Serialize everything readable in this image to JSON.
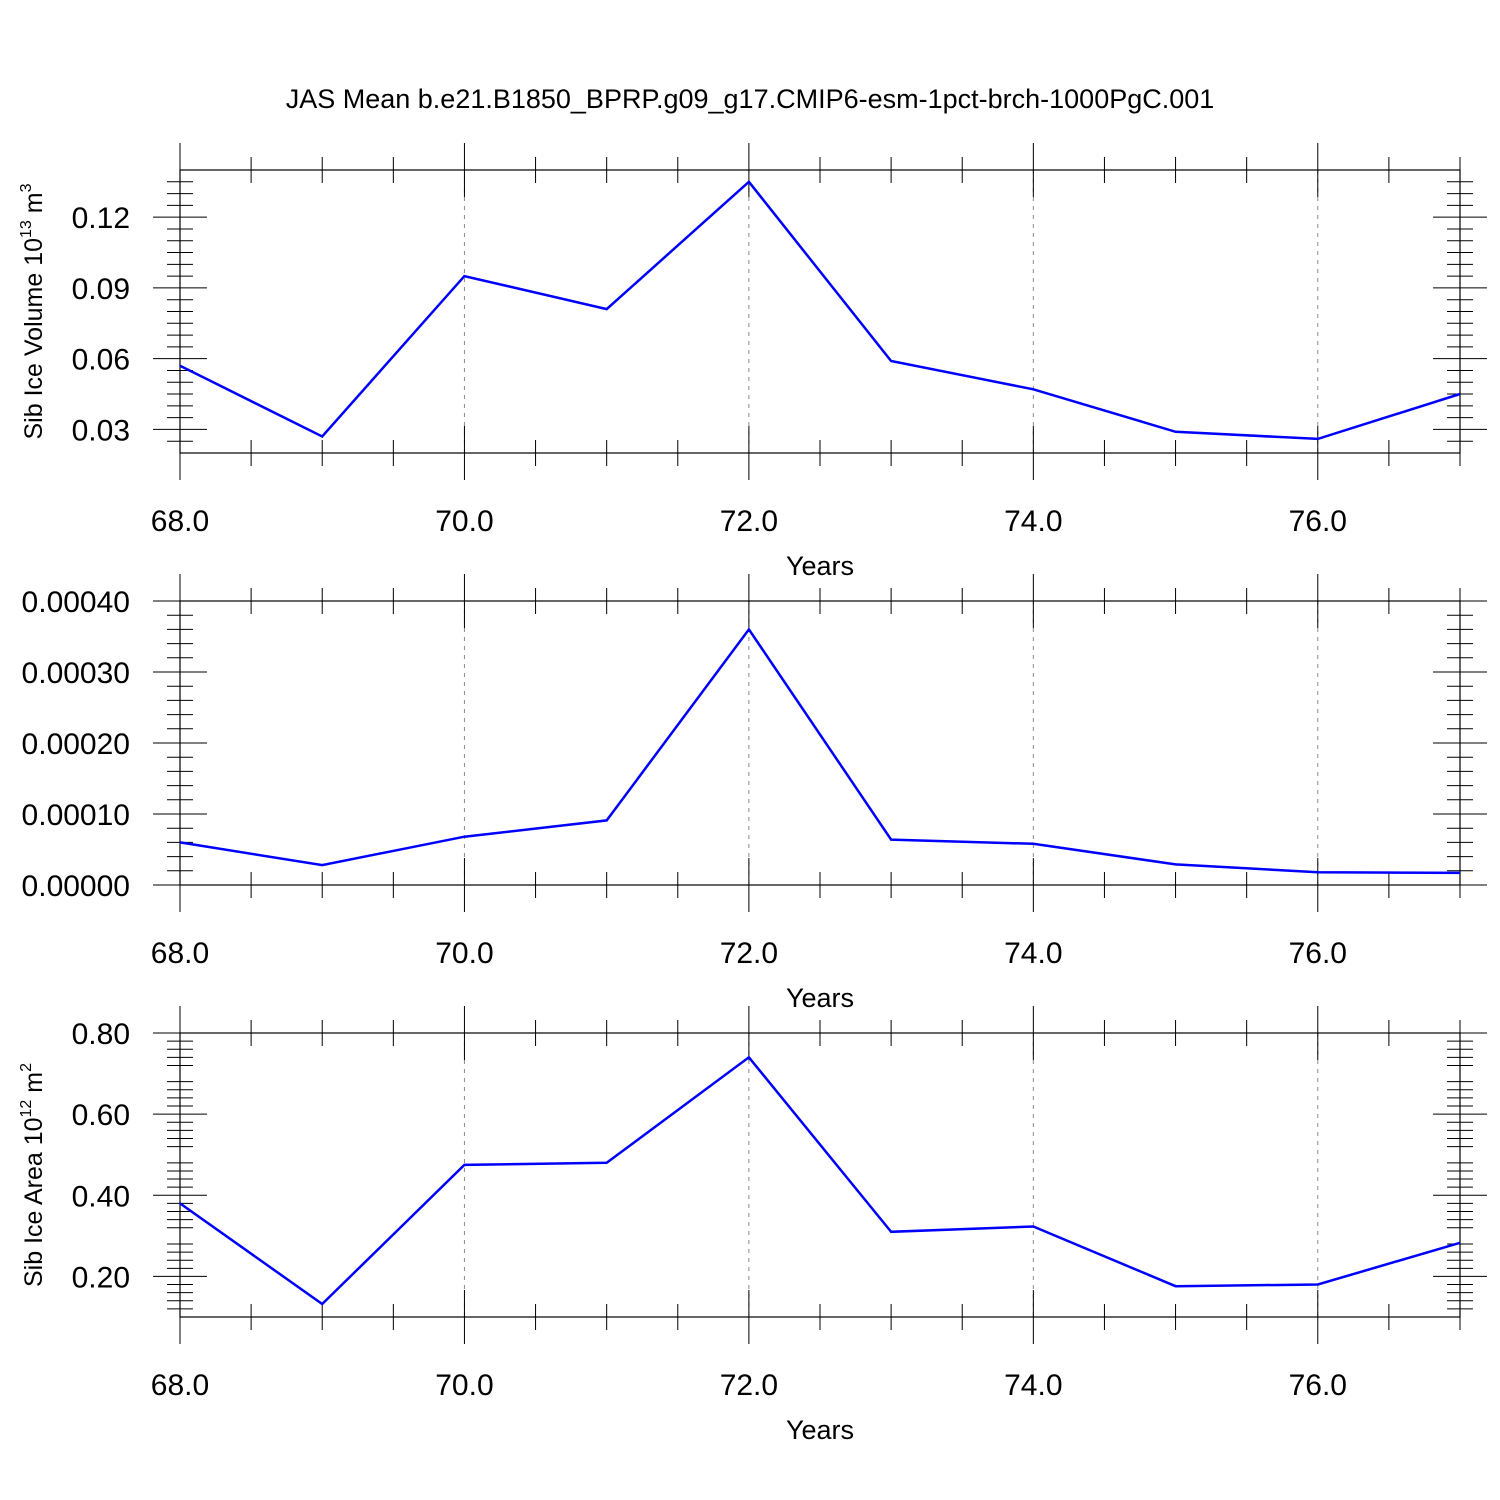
{
  "colors": {
    "line": "#0000ff",
    "axis": "#000000",
    "grid": "#8c8c8c",
    "background": "#ffffff"
  },
  "title": "JAS Mean b.e21.B1850_BPRP.g09_g17.CMIP6-esm-1pct-brch-1000PgC.001",
  "chart_data": [
    {
      "type": "line",
      "title": "",
      "xlabel": "Years",
      "ylabel": "Sib Ice Volume 10",
      "ylabel_sup1": "13",
      "ylabel_tail": " m",
      "ylabel_sup2": "3",
      "xlim": [
        68,
        77
      ],
      "ylim": [
        0.02,
        0.14
      ],
      "grid": "vertical dashed at major x ticks",
      "x": [
        68,
        69,
        70,
        71,
        72,
        73,
        74,
        75,
        76,
        77
      ],
      "x_ticks": [
        68,
        70,
        72,
        74,
        76
      ],
      "x_tick_labels": [
        "68.0",
        "70.0",
        "72.0",
        "74.0",
        "76.0"
      ],
      "y_ticks": [
        0.03,
        0.06,
        0.09,
        0.12
      ],
      "y_tick_labels": [
        "0.03",
        "0.06",
        "0.09",
        "0.12"
      ],
      "series": [
        {
          "values": [
            0.057,
            0.027,
            0.095,
            0.081,
            0.135,
            0.059,
            0.047,
            0.029,
            0.026,
            0.045
          ]
        }
      ]
    },
    {
      "type": "line",
      "title": "",
      "xlabel": "Years",
      "ylabel": "",
      "xlim": [
        68,
        77
      ],
      "ylim": [
        0,
        0.0004
      ],
      "grid": "vertical dashed at major x ticks",
      "x": [
        68,
        69,
        70,
        71,
        72,
        73,
        74,
        75,
        76,
        77
      ],
      "x_ticks": [
        68,
        70,
        72,
        74,
        76
      ],
      "x_tick_labels": [
        "68.0",
        "70.0",
        "72.0",
        "74.0",
        "76.0"
      ],
      "y_ticks": [
        0,
        0.0001,
        0.0002,
        0.0003,
        0.0004
      ],
      "y_tick_labels": [
        "0.00000",
        "0.00010",
        "0.00020",
        "0.00030",
        "0.00040"
      ],
      "series": [
        {
          "values": [
            6e-05,
            2.8e-05,
            6.8e-05,
            9.1e-05,
            0.00036,
            6.4e-05,
            5.8e-05,
            2.9e-05,
            1.8e-05,
            1.7e-05
          ]
        }
      ]
    },
    {
      "type": "line",
      "title": "",
      "xlabel": "Years",
      "ylabel": "Sib Ice Area 10",
      "ylabel_sup1": "12",
      "ylabel_tail": " m",
      "ylabel_sup2": "2",
      "xlim": [
        68,
        77
      ],
      "ylim": [
        0.1,
        0.8
      ],
      "grid": "vertical dashed at major x ticks",
      "x": [
        68,
        69,
        70,
        71,
        72,
        73,
        74,
        75,
        76,
        77
      ],
      "x_ticks": [
        68,
        70,
        72,
        74,
        76
      ],
      "x_tick_labels": [
        "68.0",
        "70.0",
        "72.0",
        "74.0",
        "76.0"
      ],
      "y_ticks": [
        0.2,
        0.4,
        0.6,
        0.8
      ],
      "y_tick_labels": [
        "0.20",
        "0.40",
        "0.60",
        "0.80"
      ],
      "series": [
        {
          "values": [
            0.38,
            0.132,
            0.475,
            0.48,
            0.74,
            0.31,
            0.323,
            0.176,
            0.18,
            0.283
          ]
        }
      ]
    }
  ]
}
